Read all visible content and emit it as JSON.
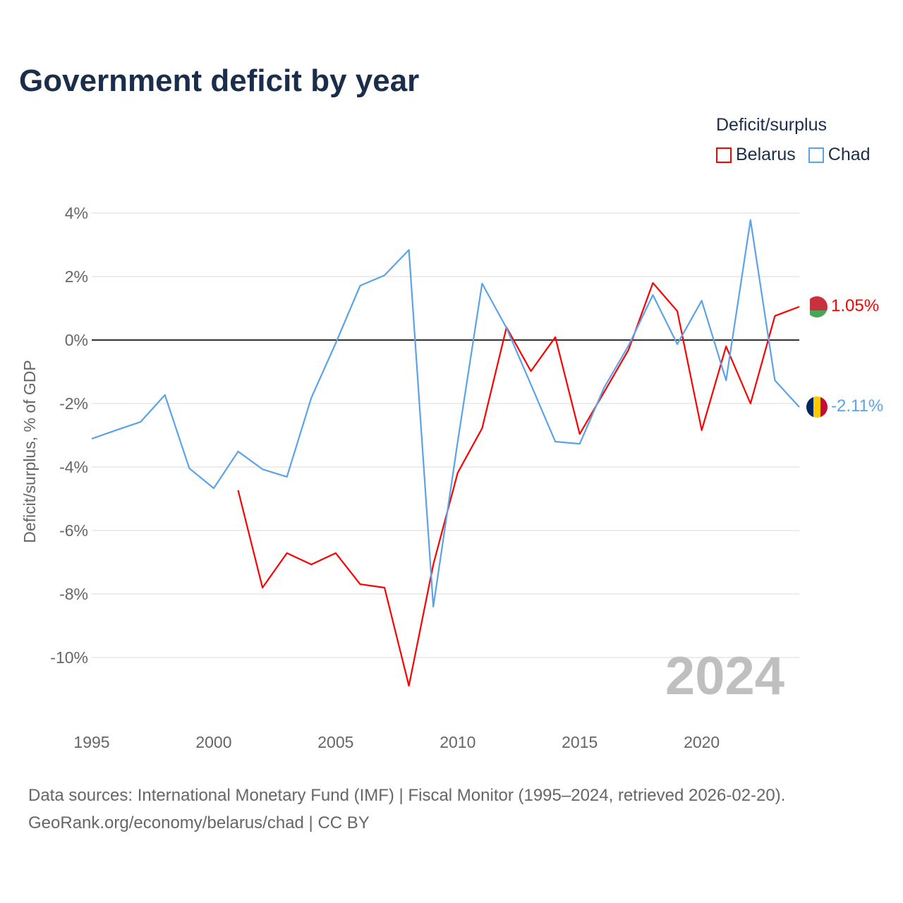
{
  "title": "Government deficit by year",
  "legend": {
    "title": "Deficit/surplus",
    "items": [
      {
        "name": "Belarus",
        "color": "#ff0000"
      },
      {
        "name": "Chad",
        "color": "#5ba3e8"
      }
    ]
  },
  "watermark_year": "2024",
  "footer": {
    "line1": "Data sources: International Monetary Fund (IMF) | Fiscal Monitor (1995–2024, retrieved 2026-02-20).",
    "line2": "GeoRank.org/economy/belarus/chad | CC BY"
  },
  "chart_data": {
    "type": "line",
    "title": "Government deficit by year",
    "xlabel": "",
    "ylabel": "Deficit/surplus, % of GDP",
    "xlim": [
      1995,
      2024
    ],
    "ylim": [
      -12,
      4
    ],
    "x_ticks": [
      1995,
      2000,
      2005,
      2010,
      2015,
      2020
    ],
    "x_tick_labels": [
      "1995",
      "2000",
      "2005",
      "2010",
      "2015",
      "2020"
    ],
    "y_ticks": [
      4,
      2,
      0,
      -2,
      -4,
      -6,
      -8,
      -10
    ],
    "y_tick_labels": [
      "4%",
      "2%",
      "0%",
      "-2%",
      "-4%",
      "-6%",
      "-8%",
      "-10%"
    ],
    "grid": true,
    "legend_position": "top-right",
    "series": [
      {
        "name": "Belarus",
        "color": "#ff0000",
        "end_label": "1.05%",
        "x": [
          2001,
          2002,
          2003,
          2004,
          2005,
          2006,
          2007,
          2008,
          2009,
          2010,
          2011,
          2012,
          2013,
          2014,
          2015,
          2016,
          2017,
          2018,
          2019,
          2020,
          2021,
          2022,
          2023,
          2024
        ],
        "values": [
          -4.73,
          -7.8,
          -6.71,
          -7.07,
          -6.71,
          -7.69,
          -7.8,
          -10.89,
          -7.07,
          -4.18,
          -2.78,
          0.4,
          -0.98,
          0.09,
          -2.96,
          -1.64,
          -0.31,
          1.8,
          0.91,
          -2.84,
          -0.2,
          -2.0,
          0.76,
          1.05
        ]
      },
      {
        "name": "Chad",
        "color": "#5ba3e8",
        "end_label": "-2.11%",
        "x": [
          1995,
          1996,
          1997,
          1998,
          1999,
          2000,
          2001,
          2002,
          2003,
          2004,
          2005,
          2006,
          2007,
          2008,
          2009,
          2010,
          2011,
          2012,
          2013,
          2014,
          2015,
          2016,
          2017,
          2018,
          2019,
          2020,
          2021,
          2022,
          2023,
          2024
        ],
        "values": [
          -3.11,
          -2.84,
          -2.58,
          -1.73,
          -4.04,
          -4.67,
          -3.51,
          -4.07,
          -4.31,
          -1.82,
          -0.1,
          1.71,
          2.04,
          2.84,
          -8.4,
          -3.2,
          1.78,
          0.38,
          -1.4,
          -3.2,
          -3.27,
          -1.5,
          -0.18,
          1.42,
          -0.13,
          1.24,
          -1.27,
          3.78,
          -1.27,
          -2.11
        ]
      }
    ]
  }
}
